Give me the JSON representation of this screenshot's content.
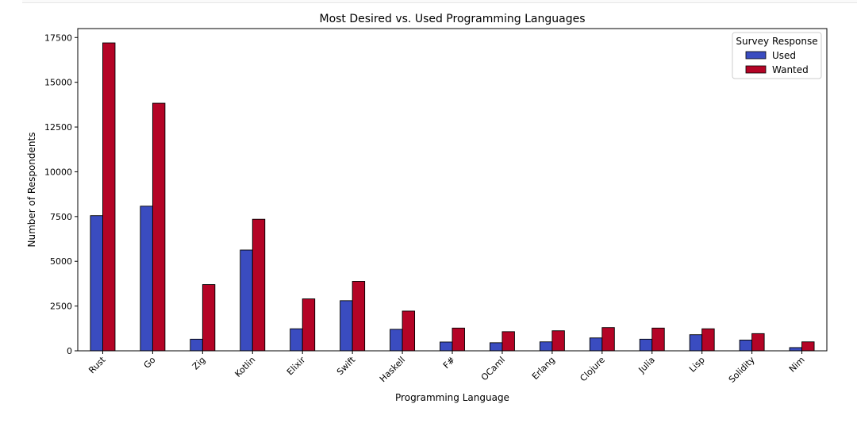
{
  "chart_data": {
    "type": "bar",
    "title": "Most Desired vs. Used Programming Languages",
    "xlabel": "Programming Language",
    "ylabel": "Number of Respondents",
    "categories": [
      "Rust",
      "Go",
      "Zig",
      "Kotlin",
      "Elixir",
      "Swift",
      "Haskell",
      "F#",
      "OCaml",
      "Erlang",
      "Clojure",
      "Julia",
      "Lisp",
      "Solidity",
      "Nim"
    ],
    "series": [
      {
        "name": "Used",
        "color": "#3a4cc0",
        "values": [
          7550,
          8080,
          650,
          5630,
          1230,
          2800,
          1200,
          490,
          450,
          500,
          720,
          650,
          900,
          600,
          180
        ]
      },
      {
        "name": "Wanted",
        "color": "#b40426",
        "values": [
          17200,
          13830,
          3700,
          7350,
          2900,
          3880,
          2220,
          1270,
          1070,
          1120,
          1300,
          1270,
          1230,
          960,
          500
        ]
      }
    ],
    "ylim": [
      0,
      18000
    ],
    "yticks": [
      0,
      2500,
      5000,
      7500,
      10000,
      12500,
      15000,
      17500
    ],
    "ytick_labels": [
      "0",
      "2500",
      "5000",
      "7500",
      "10000",
      "12500",
      "15000",
      "17500"
    ],
    "legend": {
      "title": "Survey Response",
      "position": "top-right"
    },
    "grid": false
  }
}
